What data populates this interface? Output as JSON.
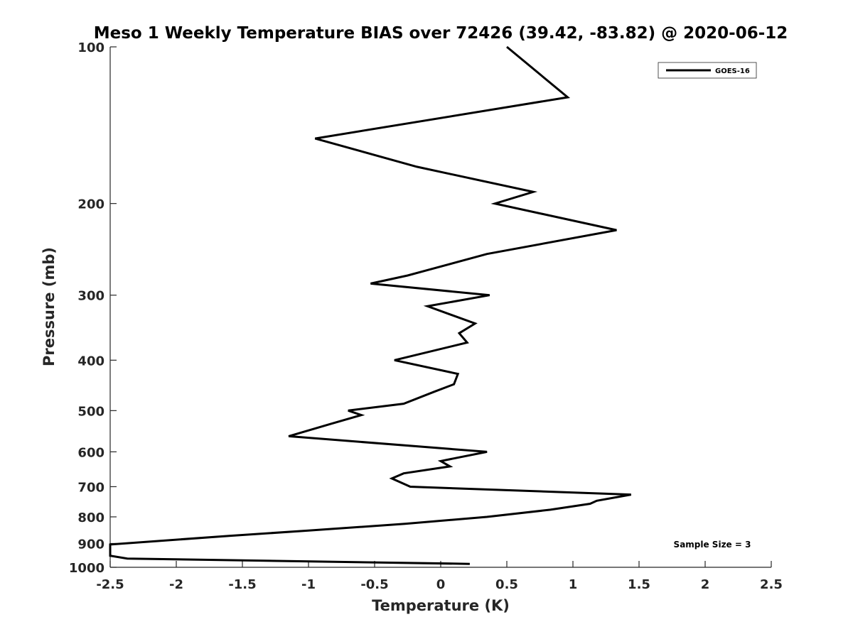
{
  "chart_data": {
    "type": "line",
    "title": "Meso 1 Weekly Temperature BIAS over 72426 (39.42, -83.82) @ 2020-06-12",
    "xlabel": "Temperature (K)",
    "ylabel": "Pressure (mb)",
    "xlim": [
      -2.5,
      2.5
    ],
    "ylim": [
      1000,
      100
    ],
    "y_scale": "log",
    "y_reversed": true,
    "x_ticks": [
      -2.5,
      -2,
      -1.5,
      -1,
      -0.5,
      0,
      0.5,
      1,
      1.5,
      2,
      2.5
    ],
    "x_tick_labels": [
      "-2.5",
      "-2",
      "-1.5",
      "-1",
      "-0.5",
      "0",
      "0.5",
      "1",
      "1.5",
      "2",
      "2.5"
    ],
    "y_ticks": [
      100,
      200,
      300,
      400,
      500,
      600,
      700,
      800,
      900,
      1000
    ],
    "y_tick_labels": [
      "100",
      "200",
      "300",
      "400",
      "500",
      "600",
      "700",
      "800",
      "900",
      "1000"
    ],
    "grid": false,
    "legend_position": "top-right",
    "series": [
      {
        "name": "GOES-16",
        "color": "#000000",
        "points": [
          {
            "x": 0.5,
            "y": 100
          },
          {
            "x": 0.96,
            "y": 125
          },
          {
            "x": -0.95,
            "y": 150
          },
          {
            "x": -0.18,
            "y": 170
          },
          {
            "x": 0.7,
            "y": 190
          },
          {
            "x": 0.41,
            "y": 200
          },
          {
            "x": 1.33,
            "y": 225
          },
          {
            "x": 0.35,
            "y": 250
          },
          {
            "x": -0.25,
            "y": 275
          },
          {
            "x": -0.53,
            "y": 285
          },
          {
            "x": 0.37,
            "y": 300
          },
          {
            "x": -0.1,
            "y": 315
          },
          {
            "x": 0.26,
            "y": 340
          },
          {
            "x": 0.14,
            "y": 355
          },
          {
            "x": 0.2,
            "y": 370
          },
          {
            "x": -0.35,
            "y": 400
          },
          {
            "x": 0.13,
            "y": 425
          },
          {
            "x": 0.1,
            "y": 445
          },
          {
            "x": -0.05,
            "y": 460
          },
          {
            "x": -0.28,
            "y": 485
          },
          {
            "x": -0.7,
            "y": 500
          },
          {
            "x": -0.6,
            "y": 510
          },
          {
            "x": -0.83,
            "y": 530
          },
          {
            "x": -1.15,
            "y": 560
          },
          {
            "x": 0.35,
            "y": 600
          },
          {
            "x": 0.0,
            "y": 625
          },
          {
            "x": 0.07,
            "y": 640
          },
          {
            "x": -0.28,
            "y": 660
          },
          {
            "x": -0.37,
            "y": 675
          },
          {
            "x": -0.23,
            "y": 700
          },
          {
            "x": 1.44,
            "y": 725
          },
          {
            "x": 1.18,
            "y": 745
          },
          {
            "x": 1.13,
            "y": 755
          },
          {
            "x": 0.83,
            "y": 775
          },
          {
            "x": 0.35,
            "y": 800
          },
          {
            "x": -0.27,
            "y": 825
          },
          {
            "x": -1.0,
            "y": 850
          },
          {
            "x": -1.6,
            "y": 870
          },
          {
            "x": -2.5,
            "y": 904
          },
          {
            "x": -2.52,
            "y": 950
          },
          {
            "x": -2.37,
            "y": 962
          },
          {
            "x": 0.22,
            "y": 985
          }
        ]
      }
    ],
    "annotations": [
      "Sample Size = 3"
    ]
  }
}
